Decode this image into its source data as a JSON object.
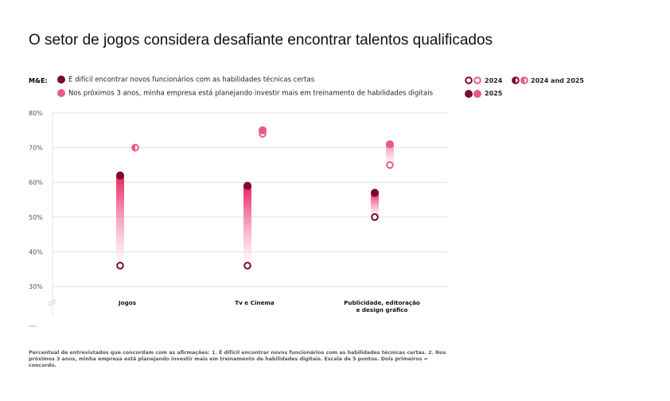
{
  "title": "O setor de jogos considera desafiante encontrar talentos qualificados",
  "legend": {
    "group_label": "M&E:",
    "series": [
      {
        "label": "É difícil encontrar novos funcionários com as habilidades técnicas certas",
        "color": "#7a0a2c"
      },
      {
        "label": "Nos próximos 3 anos, minha empresa está planejando investir mais em treinamento de habilidades digitais",
        "color": "#e85a85"
      }
    ],
    "years": {
      "y2024": "2024",
      "both": "2024 and 2025",
      "y2025": "2025"
    }
  },
  "chart_data": {
    "type": "dumbbell",
    "categories": [
      "Jogos",
      "Tv e Cinema",
      "Publicidade, editoração e design gráfico"
    ],
    "series": [
      {
        "name": "É difícil encontrar novos funcionários com as habilidades técnicas certas",
        "color": "#7a0a2c",
        "values_2024": [
          36,
          36,
          50
        ],
        "values_2025": [
          62,
          59,
          57
        ]
      },
      {
        "name": "Nos próximos 3 anos, minha empresa está planejando investir mais em treinamento de habilidades digitais",
        "color": "#e85a85",
        "values_2024": [
          70,
          74,
          65
        ],
        "values_2025": [
          70,
          75,
          71
        ]
      }
    ],
    "ylim": [
      30,
      80
    ],
    "yticks": [
      "30%",
      "40%",
      "50%",
      "60%",
      "70%",
      "80%"
    ],
    "grid": true,
    "axis_break": true
  },
  "footnote": "Percentual de entrevistados que concordam com as afirmações: 1. É difícil encontrar novos funcionários com as habilidades técnicas certas. 2. Nos próximos 3 anos, minha empresa está planejando investir mais em treinamento de habilidades digitais. Escala de 5 pontos. Dois primeiros = concordo."
}
